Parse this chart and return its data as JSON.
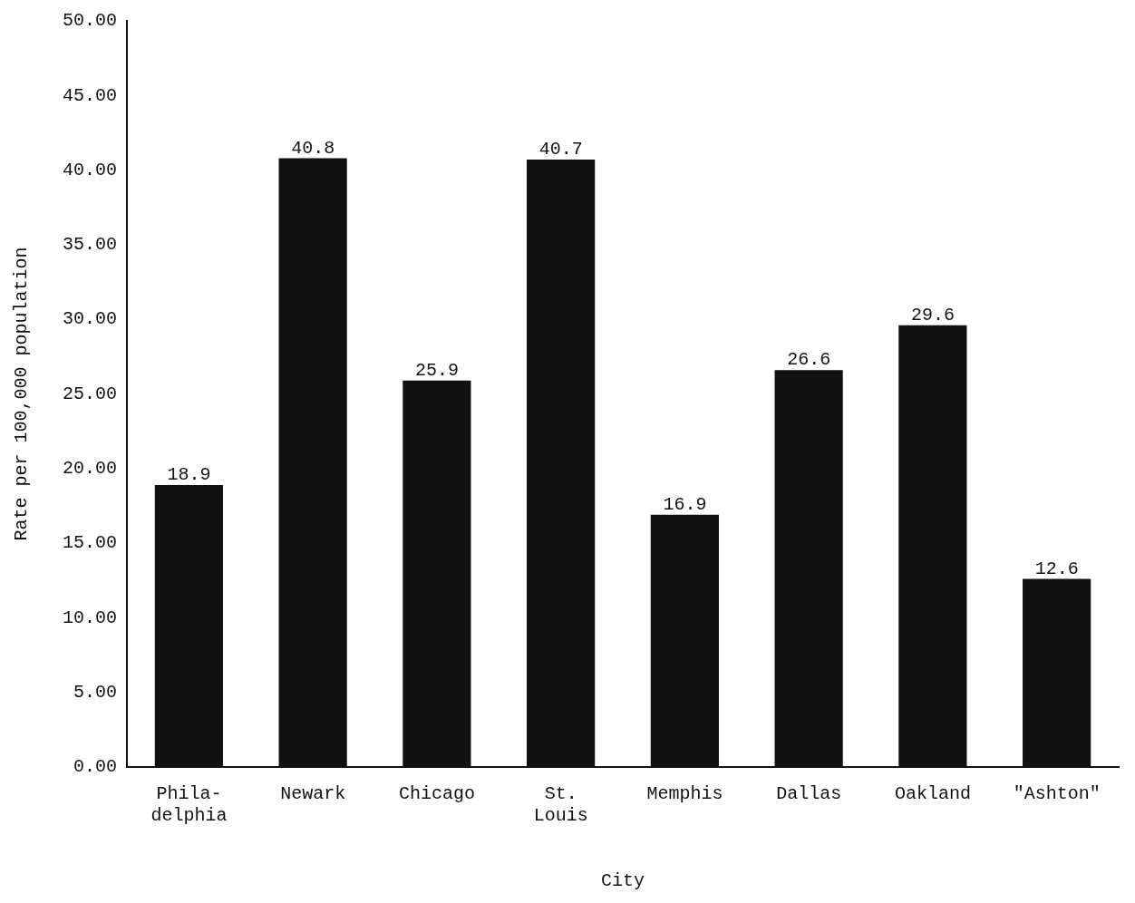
{
  "chart_data": {
    "type": "bar",
    "xlabel": "City",
    "ylabel": "Rate per 100,000 population",
    "categories": [
      "Phila-\ndelphia",
      "Newark",
      "Chicago",
      "St.\nLouis",
      "Memphis",
      "Dallas",
      "Oakland",
      "\"Ashton\""
    ],
    "values": [
      18.9,
      40.8,
      25.9,
      40.7,
      16.9,
      26.6,
      29.6,
      12.6
    ],
    "color": "#111111",
    "ylim": [
      0,
      50
    ],
    "yticks": [
      {
        "value": 0,
        "label": "0.00"
      },
      {
        "value": 5,
        "label": "5.00"
      },
      {
        "value": 10,
        "label": "10.00"
      },
      {
        "value": 15,
        "label": "15.00"
      },
      {
        "value": 20,
        "label": "20.00"
      },
      {
        "value": 25,
        "label": "25.00"
      },
      {
        "value": 30,
        "label": "30.00"
      },
      {
        "value": 35,
        "label": "35.00"
      },
      {
        "value": 40,
        "label": "40.00"
      },
      {
        "value": 45,
        "label": "45.00"
      },
      {
        "value": 50,
        "label": "50.00"
      }
    ],
    "data_labels": true,
    "grid": false,
    "legend": false
  }
}
